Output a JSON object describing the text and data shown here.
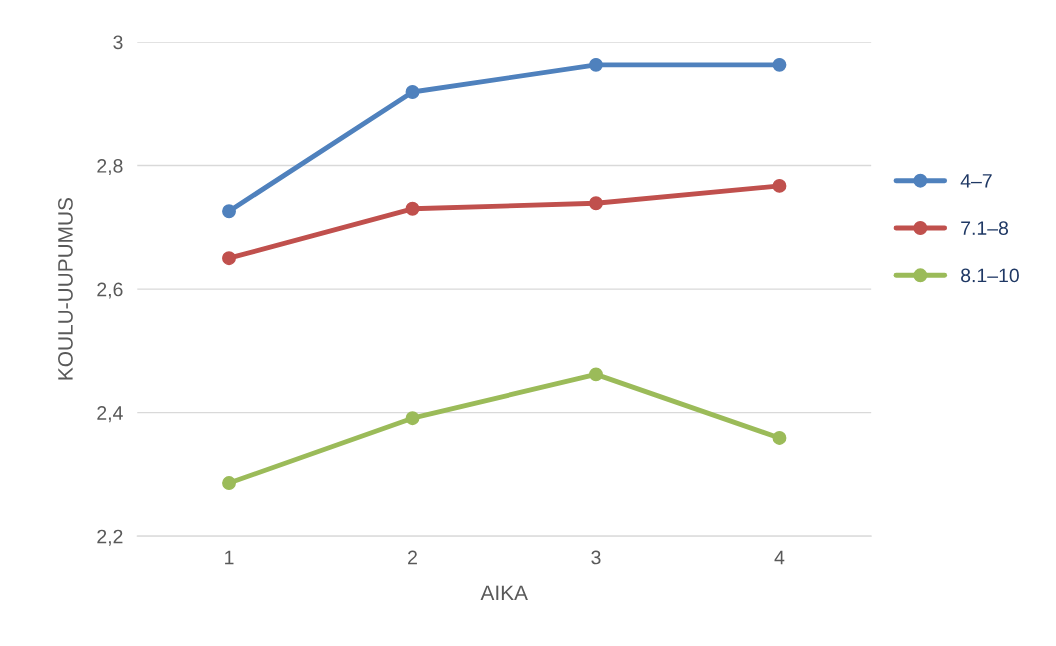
{
  "chart_data": {
    "type": "line",
    "xlabel": "AIKA",
    "ylabel": "KOULU-UUPUMUS",
    "categories": [
      "1",
      "2",
      "3",
      "4"
    ],
    "series": [
      {
        "name": "4–7",
        "color": "#4f81bd",
        "values": [
          2.726,
          2.919,
          2.963,
          2.963
        ]
      },
      {
        "name": "7.1–8",
        "color": "#c0504d",
        "values": [
          2.65,
          2.73,
          2.739,
          2.767
        ]
      },
      {
        "name": "8.1–10",
        "color": "#9bbb59",
        "values": [
          2.286,
          2.391,
          2.462,
          2.359
        ]
      }
    ],
    "ylim": [
      2.2,
      3
    ],
    "yticks": [
      {
        "value": 2.2,
        "label": "2,2"
      },
      {
        "value": 2.4,
        "label": "2,4"
      },
      {
        "value": 2.6,
        "label": "2,6"
      },
      {
        "value": 2.8,
        "label": "2,8"
      },
      {
        "value": 3,
        "label": "3"
      }
    ],
    "grid": "y",
    "legend": "right",
    "marker": "circle",
    "line_style": "solid"
  }
}
